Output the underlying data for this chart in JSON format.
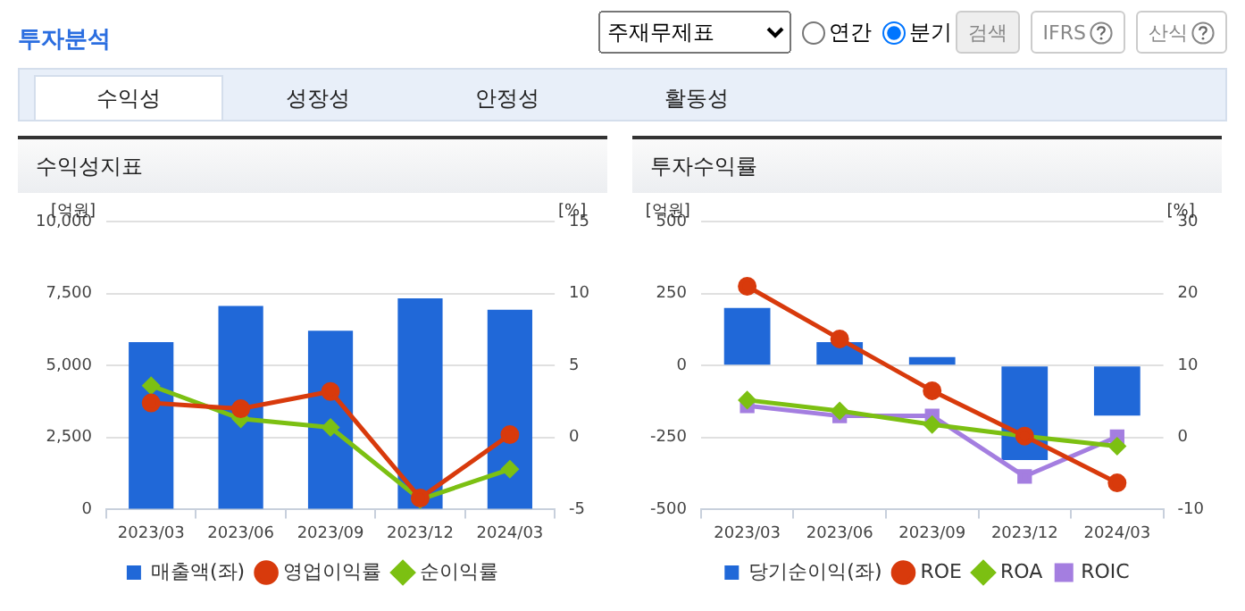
{
  "chart_data": [
    {
      "type": "other",
      "title": "투자분석",
      "annotations": [
        "주재무제표",
        "연간",
        "분기",
        "검색",
        "IFRS",
        "산식",
        "수익성",
        "성장성",
        "안정성",
        "활동성"
      ]
    },
    {
      "type": "bar",
      "title": "수익성지표",
      "ylabel": "[억원]",
      "y2label": "[%]",
      "categories": [
        "2023/03",
        "2023/06",
        "2023/09",
        "2023/12",
        "2024/03"
      ],
      "series": [
        {
          "name": "매출액(좌)",
          "type": "bar",
          "color": "#2068d8",
          "values": [
            5810,
            7070,
            6210,
            7330,
            6940
          ]
        },
        {
          "name": "영업이익률",
          "type": "line",
          "axis": "y2",
          "color": "#d83a0c",
          "marker": "circle",
          "values": [
            2.4,
            2.0,
            3.2,
            -4.2,
            0.2
          ]
        },
        {
          "name": "순이익률",
          "type": "line",
          "axis": "y2",
          "color": "#7cc012",
          "marker": "diamond",
          "values": [
            3.6,
            1.3,
            0.7,
            -4.3,
            -2.2
          ]
        }
      ],
      "ylim": [
        0,
        10000
      ],
      "yticks": [
        0,
        {
          "value": 2500,
          "label": "2,500"
        },
        {
          "value": 5000,
          "label": "5,000"
        },
        {
          "value": 7500,
          "label": "7,500"
        },
        {
          "value": 10000,
          "label": "10,000"
        }
      ],
      "y2lim": [
        -5,
        15
      ],
      "y2ticks": [
        -5,
        0,
        5,
        10,
        15
      ],
      "grid": "y",
      "legend": "bottom"
    },
    {
      "type": "bar",
      "title": "투자수익률",
      "ylabel": "[억원]",
      "y2label": "[%]",
      "categories": [
        "2023/03",
        "2023/06",
        "2023/09",
        "2023/12",
        "2024/03"
      ],
      "series": [
        {
          "name": "당기순이익(좌)",
          "type": "bar",
          "color": "#2068d8",
          "values": [
            200,
            81,
            29,
            -328,
            -174
          ]
        },
        {
          "name": "ROE",
          "type": "line",
          "axis": "y2",
          "color": "#d83a0c",
          "marker": "circle",
          "values": [
            21,
            13.7,
            6.5,
            0.2,
            -6.3
          ]
        },
        {
          "name": "ROA",
          "type": "line",
          "axis": "y2",
          "color": "#7cc012",
          "marker": "diamond",
          "values": [
            5.2,
            3.7,
            1.8,
            0.2,
            -1.2
          ]
        },
        {
          "name": "ROIC",
          "type": "line",
          "axis": "y2",
          "color": "#a47ee0",
          "marker": "square",
          "values": [
            4.4,
            3.0,
            3.0,
            -5.4,
            0.1
          ]
        }
      ],
      "ylim": [
        -500,
        500
      ],
      "yticks": [
        -500,
        -250,
        0,
        250,
        500
      ],
      "y2lim": [
        -10,
        30
      ],
      "y2ticks": [
        -10,
        0,
        10,
        20,
        30
      ],
      "grid": "y",
      "legend": "bottom"
    }
  ]
}
